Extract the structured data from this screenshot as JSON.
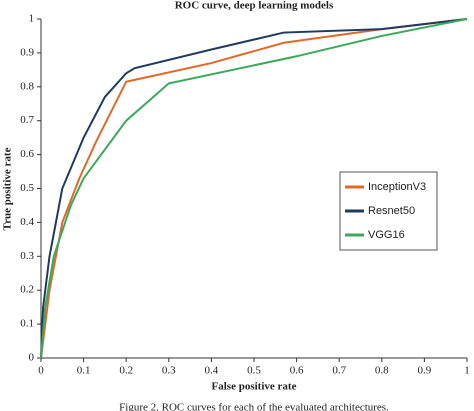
{
  "chart_data": {
    "type": "line",
    "title": "ROC curve, deep learning models",
    "x_label": "False positive rate",
    "y_label": "True positive rate",
    "caption": "Figure 2. ROC curves for each of the evaluated architectures.",
    "xlim": [
      0,
      1
    ],
    "ylim": [
      0,
      1
    ],
    "xticks": [
      0,
      0.1,
      0.2,
      0.3,
      0.4,
      0.5,
      0.6,
      0.7,
      0.8,
      0.9,
      1
    ],
    "yticks": [
      0,
      0.1,
      0.2,
      0.3,
      0.4,
      0.5,
      0.6,
      0.7,
      0.8,
      0.9,
      1
    ],
    "legend": "right",
    "series": [
      {
        "name": "InceptionV3",
        "color": "#e0692a",
        "x": [
          0,
          0.02,
          0.05,
          0.09,
          0.13,
          0.2,
          0.4,
          0.57,
          0.8,
          1
        ],
        "values": [
          0,
          0.2,
          0.4,
          0.53,
          0.64,
          0.815,
          0.87,
          0.93,
          0.97,
          1
        ]
      },
      {
        "name": "Resnet50",
        "color": "#1f3a5f",
        "x": [
          0,
          0.005,
          0.02,
          0.05,
          0.1,
          0.15,
          0.2,
          0.22,
          0.4,
          0.57,
          0.8,
          1
        ],
        "values": [
          0,
          0.15,
          0.3,
          0.5,
          0.65,
          0.77,
          0.84,
          0.855,
          0.91,
          0.96,
          0.97,
          1
        ]
      },
      {
        "name": "VGG16",
        "color": "#3aaa5a",
        "x": [
          0,
          0.01,
          0.03,
          0.07,
          0.1,
          0.2,
          0.3,
          0.6,
          0.8,
          1
        ],
        "values": [
          0,
          0.15,
          0.3,
          0.45,
          0.53,
          0.7,
          0.81,
          0.89,
          0.95,
          1
        ]
      }
    ]
  }
}
